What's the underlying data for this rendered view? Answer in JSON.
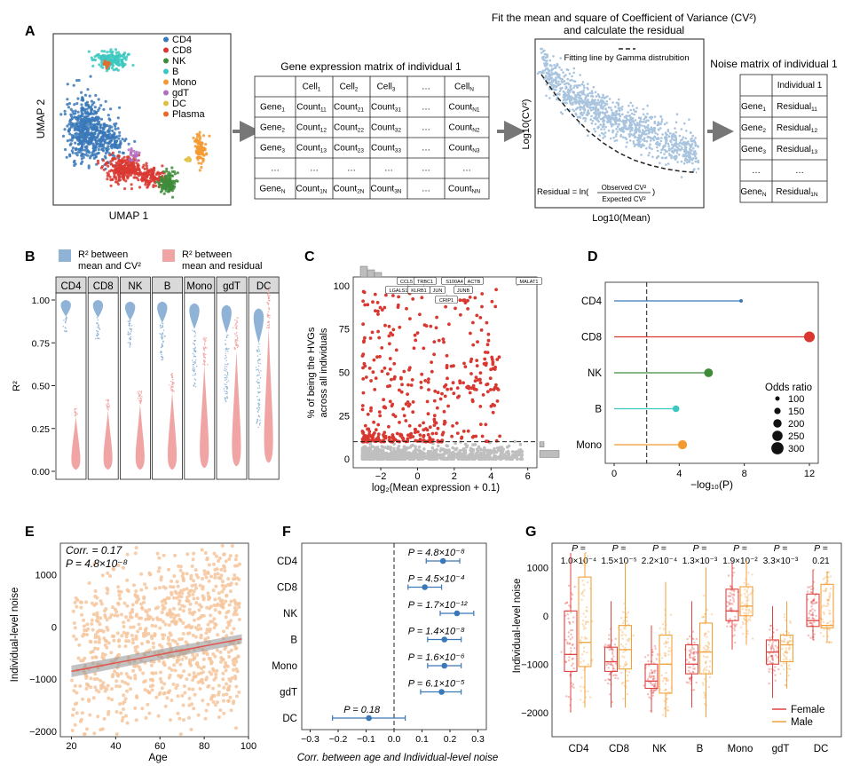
{
  "panels": {
    "A": {
      "letter": "A",
      "umap": {
        "xlabel": "UMAP 1",
        "ylabel": "UMAP 2",
        "legend": [
          {
            "label": "CD4",
            "color": "#3a78b8"
          },
          {
            "label": "CD8",
            "color": "#d93831"
          },
          {
            "label": "NK",
            "color": "#3e8c3a"
          },
          {
            "label": "B",
            "color": "#3cc8c0"
          },
          {
            "label": "Mono",
            "color": "#f39a33"
          },
          {
            "label": "gdT",
            "color": "#b06fc0"
          },
          {
            "label": "DC",
            "color": "#e0c040"
          },
          {
            "label": "Plasma",
            "color": "#e86a2a"
          }
        ]
      },
      "gene_matrix": {
        "title": "Gene expression matrix of individual 1",
        "header": [
          [
            "",
            ""
          ],
          [
            "Cell",
            "1"
          ],
          [
            "Cell",
            "2"
          ],
          [
            "Cell",
            "3"
          ],
          [
            "…",
            ""
          ],
          [
            "Cell",
            "N"
          ]
        ],
        "rows": [
          [
            [
              "Gene",
              "1"
            ],
            [
              "Count",
              "11"
            ],
            [
              "Count",
              "21"
            ],
            [
              "Count",
              "31"
            ],
            [
              "…",
              ""
            ],
            [
              "Count",
              "N1"
            ]
          ],
          [
            [
              "Gene",
              "2"
            ],
            [
              "Count",
              "12"
            ],
            [
              "Count",
              "22"
            ],
            [
              "Count",
              "32"
            ],
            [
              "…",
              ""
            ],
            [
              "Count",
              "N2"
            ]
          ],
          [
            [
              "Gene",
              "3"
            ],
            [
              "Count",
              "13"
            ],
            [
              "Count",
              "23"
            ],
            [
              "Count",
              "33"
            ],
            [
              "…",
              ""
            ],
            [
              "Count",
              "N3"
            ]
          ],
          [
            [
              "…",
              ""
            ],
            [
              "…",
              ""
            ],
            [
              "…",
              ""
            ],
            [
              "…",
              ""
            ],
            [
              "…",
              ""
            ],
            [
              "…",
              ""
            ]
          ],
          [
            [
              "Gene",
              "N"
            ],
            [
              "Count",
              "1N"
            ],
            [
              "Count",
              "2N"
            ],
            [
              "Count",
              "3N"
            ],
            [
              "…",
              ""
            ],
            [
              "Count",
              "NN"
            ]
          ]
        ]
      },
      "fit": {
        "title1": "Fit the mean and square of Coefficient of Variance (CV²)",
        "title2": "and calculate the residual",
        "legend": "Fitting line by Gamma distrubition",
        "ylabel": "Log10(CV²)",
        "xlabel": "Log10(Mean)",
        "residual_prefix": "Residual = ln(",
        "residual_num": "Observed CV²",
        "residual_den": "Expected CV²",
        "residual_suffix": ")"
      },
      "noise_matrix": {
        "title": "Noise matrix of individual 1",
        "header": [
          [
            "",
            ""
          ],
          [
            "Individual 1",
            ""
          ]
        ],
        "rows": [
          [
            [
              "Gene",
              "1"
            ],
            [
              "Residual",
              "11"
            ]
          ],
          [
            [
              "Gene",
              "2"
            ],
            [
              "Residual",
              "12"
            ]
          ],
          [
            [
              "Gene",
              "3"
            ],
            [
              "Residual",
              "13"
            ]
          ],
          [
            [
              "…",
              ""
            ],
            [
              "…",
              ""
            ]
          ],
          [
            [
              "Gene",
              "N"
            ],
            [
              "Residual",
              "1N"
            ]
          ]
        ]
      }
    },
    "B": {
      "letter": "B",
      "legend1a": "R² between",
      "legend1b": "mean and CV²",
      "legend2a": "R² between",
      "legend2b": "mean and residual",
      "ylabel": "R²",
      "cells": [
        "CD4",
        "CD8",
        "NK",
        "B",
        "Mono",
        "gdT",
        "DC"
      ],
      "yticks": [
        "1.00",
        "0.75",
        "0.50",
        "0.25",
        "0.00"
      ]
    },
    "C": {
      "letter": "C",
      "ylabel1": "% of being the HVGs",
      "ylabel2": "across all individuals",
      "xlabel": "log₂(Mean expression + 0.1)",
      "xticks": [
        "−2",
        "0",
        "2",
        "4",
        "6"
      ],
      "yticks": [
        "0",
        "25",
        "50",
        "75",
        "100"
      ],
      "genes": [
        "CCL5",
        "TRBC1",
        "S100A4",
        "ACTB",
        "MALAT1",
        "LGALS1",
        "KLRB1",
        "JUN",
        "JUNB",
        "CRIP1"
      ]
    },
    "D": {
      "letter": "D",
      "xlabel": "−log₁₀(P)",
      "xticks": [
        "0",
        "4",
        "8",
        "12"
      ],
      "legend_title": "Odds ratio",
      "legend_items": [
        "100",
        "150",
        "200",
        "250",
        "300"
      ]
    },
    "E": {
      "letter": "E",
      "corr": "Corr. = 0.17",
      "pval": "P = 4.8×10⁻⁸",
      "xlabel": "Age",
      "ylabel": "Individual-level noise",
      "xticks": [
        "20",
        "40",
        "60",
        "80",
        "100"
      ],
      "yticks": [
        "1000",
        "0",
        "−1000",
        "−2000"
      ]
    },
    "F": {
      "letter": "F",
      "xlabel": "Corr. between age and Individual-level noise",
      "xticks": [
        "−0.3",
        "−0.2",
        "−0.1",
        "0.0",
        "0.1",
        "0.2",
        "0.3"
      ],
      "pvals": [
        "P = 4.8×10⁻⁸",
        "P = 4.5×10⁻⁴",
        "P = 1.7×10⁻¹²",
        "P = 1.4×10⁻⁸",
        "P = 1.6×10⁻⁶",
        "P = 6.1×10⁻⁵",
        "P = 0.18"
      ]
    },
    "G": {
      "letter": "G",
      "ylabel": "Individual-level noise",
      "yticks": [
        "1000",
        "0",
        "−1000",
        "−2000"
      ],
      "p_header": "P =",
      "pvals": [
        "1.0×10⁻⁴",
        "1.5×10⁻⁵",
        "2.2×10⁻⁴",
        "1.3×10⁻³",
        "1.9×10⁻²",
        "3.3×10⁻³",
        "0.21"
      ],
      "legend": [
        {
          "label": "Female",
          "color": "#e0423f"
        },
        {
          "label": "Male",
          "color": "#f2a03a"
        }
      ]
    }
  },
  "chart_data": [
    {
      "type": "scatter",
      "panel": "A-fit",
      "title": "Fit the mean and square of Coefficient of Variance (CV²)",
      "xlabel": "Log10(Mean)",
      "ylabel": "Log10(CV²)",
      "fit_curve_x": [
        0.0,
        0.1,
        0.2,
        0.3,
        0.4,
        0.5,
        0.6,
        0.7,
        0.8,
        0.9,
        1.0
      ],
      "fit_curve_y": [
        1.0,
        0.82,
        0.67,
        0.54,
        0.44,
        0.36,
        0.3,
        0.26,
        0.23,
        0.21,
        0.2
      ]
    },
    {
      "type": "violin",
      "panel": "B",
      "categories": [
        "CD4",
        "CD8",
        "NK",
        "B",
        "Mono",
        "gdT",
        "DC"
      ],
      "series": [
        {
          "name": "R² between mean and CV²",
          "color": "#8fb3d6",
          "medians": [
            0.98,
            0.98,
            0.97,
            0.97,
            0.96,
            0.95,
            0.93
          ]
        },
        {
          "name": "R² between mean and residual",
          "color": "#f1a4a4",
          "medians": [
            0.03,
            0.03,
            0.03,
            0.03,
            0.04,
            0.05,
            0.07
          ]
        }
      ],
      "ylabel": "R²",
      "ylim": [
        0,
        1
      ]
    },
    {
      "type": "scatter",
      "panel": "C",
      "xlabel": "log₂(Mean expression + 0.1)",
      "ylabel": "% of being the HVGs across all individuals",
      "xlim": [
        -3.5,
        6.5
      ],
      "ylim": [
        -5,
        105
      ],
      "threshold": 10,
      "labeled_genes": [
        {
          "name": "CCL5",
          "x": -0.5,
          "y": 99
        },
        {
          "name": "TRBC1",
          "x": 0.3,
          "y": 99
        },
        {
          "name": "S100A4",
          "x": 2.1,
          "y": 99
        },
        {
          "name": "ACTB",
          "x": 2.8,
          "y": 100
        },
        {
          "name": "MALAT1",
          "x": 5.4,
          "y": 100
        },
        {
          "name": "LGALS1",
          "x": -1.0,
          "y": 97
        },
        {
          "name": "KLRB1",
          "x": 0.1,
          "y": 97
        },
        {
          "name": "JUN",
          "x": 1.0,
          "y": 97
        },
        {
          "name": "JUNB",
          "x": 2.2,
          "y": 97
        },
        {
          "name": "CRIP1",
          "x": 1.6,
          "y": 95
        }
      ]
    },
    {
      "type": "lollipop",
      "panel": "D",
      "categories": [
        "CD4",
        "CD8",
        "NK",
        "B",
        "Mono"
      ],
      "values": [
        7.8,
        12.0,
        5.8,
        3.8,
        4.2
      ],
      "odds_ratio": [
        100,
        280,
        230,
        180,
        240
      ],
      "colors": [
        "#3a78b8",
        "#d93831",
        "#3e8c3a",
        "#3cc8c0",
        "#f39a33"
      ],
      "threshold": 2.0,
      "xlabel": "−log₁₀(P)",
      "xlim": [
        0,
        12
      ]
    },
    {
      "type": "scatter",
      "panel": "E",
      "xlabel": "Age",
      "ylabel": "Individual-level noise",
      "xlim": [
        15,
        100
      ],
      "ylim": [
        -2100,
        1600
      ],
      "regression": {
        "x": [
          20,
          97
        ],
        "y": [
          -850,
          -230
        ]
      },
      "corr": 0.17
    },
    {
      "type": "forest",
      "panel": "F",
      "categories": [
        "CD4",
        "CD8",
        "NK",
        "B",
        "Mono",
        "gdT",
        "DC"
      ],
      "estimate": [
        0.175,
        0.11,
        0.225,
        0.18,
        0.18,
        0.17,
        -0.09
      ],
      "ci_low": [
        0.115,
        0.05,
        0.165,
        0.12,
        0.12,
        0.095,
        -0.22
      ],
      "ci_high": [
        0.235,
        0.17,
        0.285,
        0.24,
        0.24,
        0.24,
        0.04
      ],
      "xlim": [
        -0.33,
        0.33
      ]
    },
    {
      "type": "box",
      "panel": "G",
      "categories": [
        "CD4",
        "CD8",
        "NK",
        "B",
        "Mono",
        "gdT",
        "DC"
      ],
      "series": [
        {
          "name": "Female",
          "color": "#e0423f",
          "q1": [
            -1150,
            -1150,
            -1500,
            -1200,
            -100,
            -1000,
            -220
          ],
          "median": [
            -800,
            -950,
            -1350,
            -1000,
            100,
            -750,
            -100
          ],
          "q3": [
            100,
            -650,
            -1000,
            -600,
            550,
            -500,
            450
          ],
          "whisk_lo": [
            -2000,
            -1900,
            -2000,
            -1900,
            -700,
            -1700,
            -500
          ],
          "whisk_hi": [
            1300,
            300,
            -200,
            300,
            1100,
            200,
            950
          ]
        },
        {
          "name": "Male",
          "color": "#f2a03a",
          "q1": [
            -1050,
            -1100,
            -1600,
            -1200,
            0,
            -950,
            -250
          ],
          "median": [
            -550,
            -700,
            -1000,
            -750,
            200,
            -600,
            -200
          ],
          "q3": [
            800,
            -200,
            -400,
            -150,
            600,
            -400,
            650
          ],
          "whisk_lo": [
            -1900,
            -1900,
            -2100,
            -2100,
            -600,
            -1500,
            -550
          ],
          "whisk_hi": [
            1300,
            1100,
            700,
            1000,
            1150,
            300,
            900
          ]
        }
      ],
      "ylim": [
        -2500,
        1500
      ]
    }
  ]
}
